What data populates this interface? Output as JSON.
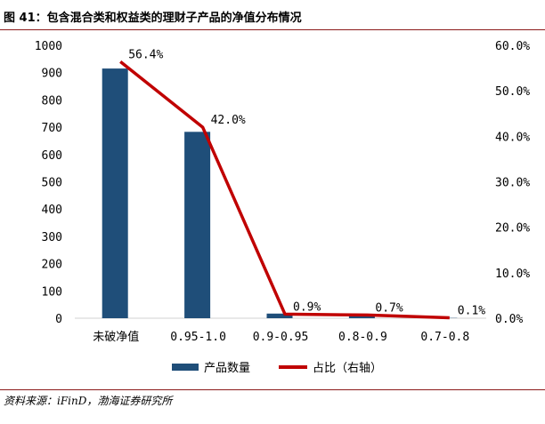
{
  "title": "图 41：包含混合类和权益类的理财子产品的净值分布情况",
  "source": "资料来源：iFinD，渤海证券研究所",
  "chart_data": {
    "type": "bar",
    "categories": [
      "未破净值",
      "0.95-1.0",
      "0.9-0.95",
      "0.8-0.9",
      "0.7-0.8"
    ],
    "series": [
      {
        "name": "产品数量",
        "type": "bar",
        "axis": "left",
        "color": "#1F4E79",
        "values": [
          915,
          683,
          17,
          13,
          1
        ]
      },
      {
        "name": "占比（右轴）",
        "type": "line",
        "axis": "right",
        "color": "#C00000",
        "values": [
          56.4,
          42.0,
          0.9,
          0.7,
          0.1
        ],
        "labels": [
          "56.4%",
          "42.0%",
          "0.9%",
          "0.7%",
          "0.1%"
        ]
      }
    ],
    "y_left": {
      "lim": [
        0,
        1000
      ],
      "ticks": [
        "0",
        "100",
        "200",
        "300",
        "400",
        "500",
        "600",
        "700",
        "800",
        "900",
        "1000"
      ]
    },
    "y_right": {
      "lim": [
        0,
        60
      ],
      "ticks": [
        "0.0%",
        "10.0%",
        "20.0%",
        "30.0%",
        "40.0%",
        "50.0%",
        "60.0%"
      ]
    },
    "legend_position": "bottom",
    "grid": false
  }
}
